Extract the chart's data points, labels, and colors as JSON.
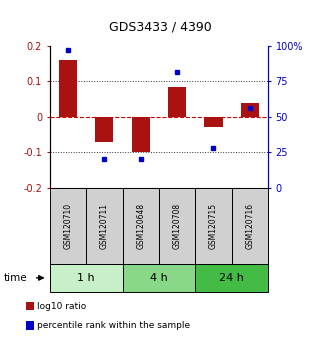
{
  "title": "GDS3433 / 4390",
  "samples": [
    "GSM120710",
    "GSM120711",
    "GSM120648",
    "GSM120708",
    "GSM120715",
    "GSM120716"
  ],
  "log10_ratio": [
    0.16,
    -0.072,
    -0.1,
    0.085,
    -0.03,
    0.038
  ],
  "percentile_rank": [
    97,
    20,
    20,
    82,
    28,
    56
  ],
  "groups": [
    {
      "label": "1 h",
      "start": 0,
      "end": 2,
      "color": "#c8f0c8"
    },
    {
      "label": "4 h",
      "start": 2,
      "end": 4,
      "color": "#88d888"
    },
    {
      "label": "24 h",
      "start": 4,
      "end": 6,
      "color": "#44bb44"
    }
  ],
  "bar_color": "#aa1111",
  "dot_color": "#0000cc",
  "ylim": [
    -0.2,
    0.2
  ],
  "y2lim": [
    0,
    100
  ],
  "yticks_left": [
    -0.2,
    -0.1,
    0.0,
    0.1,
    0.2
  ],
  "yticks_right": [
    0,
    25,
    50,
    75,
    100
  ],
  "ytick_labels_left": [
    "-0.2",
    "-0.1",
    "0",
    "0.1",
    "0.2"
  ],
  "ytick_labels_right": [
    "0",
    "25",
    "50",
    "75",
    "100%"
  ],
  "hline_color": "#cc0000",
  "grid_color": "#333333",
  "sample_box_color": "#d0d0d0",
  "time_label": "time",
  "legend_items": [
    {
      "label": "log10 ratio",
      "color": "#aa1111"
    },
    {
      "label": "percentile rank within the sample",
      "color": "#0000cc"
    }
  ]
}
